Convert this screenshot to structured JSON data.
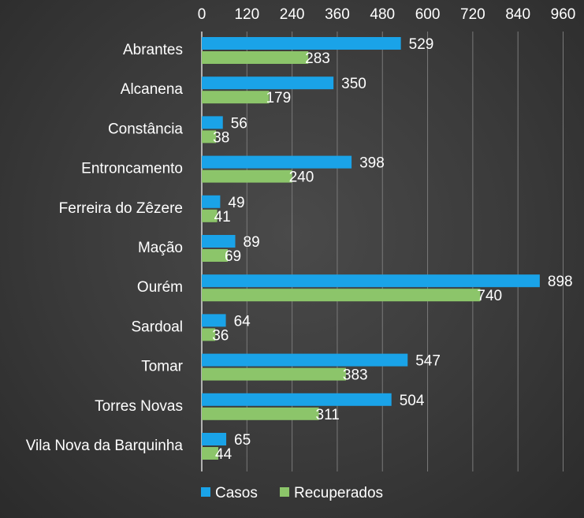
{
  "chart_data": {
    "type": "bar",
    "orientation": "horizontal",
    "title": "",
    "xlabel": "",
    "ylabel": "",
    "xlim": [
      0,
      960
    ],
    "ticks": [
      0,
      120,
      240,
      360,
      480,
      600,
      720,
      840,
      960
    ],
    "tick_labels": [
      "0",
      "120",
      "240",
      "360",
      "480",
      "600",
      "720",
      "840",
      "960"
    ],
    "grid": true,
    "legend_position": "bottom",
    "categories": [
      "Abrantes",
      "Alcanena",
      "Constância",
      "Entroncamento",
      "Ferreira do Zêzere",
      "Mação",
      "Ourém",
      "Sardoal",
      "Tomar",
      "Torres Novas",
      "Vila Nova da Barquinha"
    ],
    "series": [
      {
        "name": "Casos",
        "color": "#1aa3e8",
        "values": [
          529,
          350,
          56,
          398,
          49,
          89,
          898,
          64,
          547,
          504,
          65
        ]
      },
      {
        "name": "Recuperados",
        "color": "#8cc56a",
        "values": [
          283,
          179,
          38,
          240,
          41,
          69,
          740,
          36,
          383,
          311,
          44
        ]
      }
    ]
  }
}
